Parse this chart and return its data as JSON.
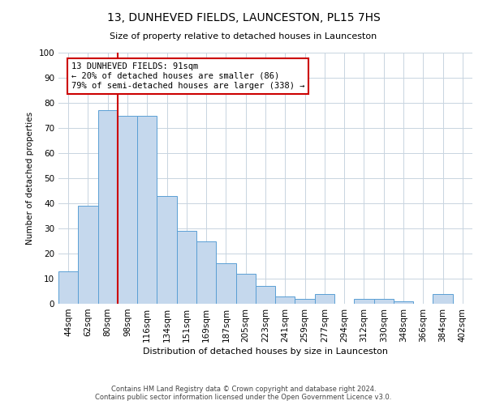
{
  "title": "13, DUNHEVED FIELDS, LAUNCESTON, PL15 7HS",
  "subtitle": "Size of property relative to detached houses in Launceston",
  "xlabel": "Distribution of detached houses by size in Launceston",
  "ylabel": "Number of detached properties",
  "categories": [
    "44sqm",
    "62sqm",
    "80sqm",
    "98sqm",
    "116sqm",
    "134sqm",
    "151sqm",
    "169sqm",
    "187sqm",
    "205sqm",
    "223sqm",
    "241sqm",
    "259sqm",
    "277sqm",
    "294sqm",
    "312sqm",
    "330sqm",
    "348sqm",
    "366sqm",
    "384sqm",
    "402sqm"
  ],
  "bar_heights": [
    13,
    39,
    77,
    75,
    75,
    43,
    29,
    25,
    16,
    12,
    7,
    3,
    2,
    4,
    0,
    2,
    2,
    1,
    0,
    4,
    0
  ],
  "bar_color": "#c5d8ed",
  "bar_edge_color": "#5a9fd4",
  "property_line_x": 2.5,
  "annotation_text": "13 DUNHEVED FIELDS: 91sqm\n← 20% of detached houses are smaller (86)\n79% of semi-detached houses are larger (338) →",
  "annotation_box_color": "#ffffff",
  "annotation_box_edge": "#cc0000",
  "vline_color": "#cc0000",
  "ylim": [
    0,
    100
  ],
  "yticks": [
    0,
    10,
    20,
    30,
    40,
    50,
    60,
    70,
    80,
    90,
    100
  ],
  "background_color": "#ffffff",
  "grid_color": "#c8d4e0",
  "footer_line1": "Contains HM Land Registry data © Crown copyright and database right 2024.",
  "footer_line2": "Contains public sector information licensed under the Open Government Licence v3.0."
}
